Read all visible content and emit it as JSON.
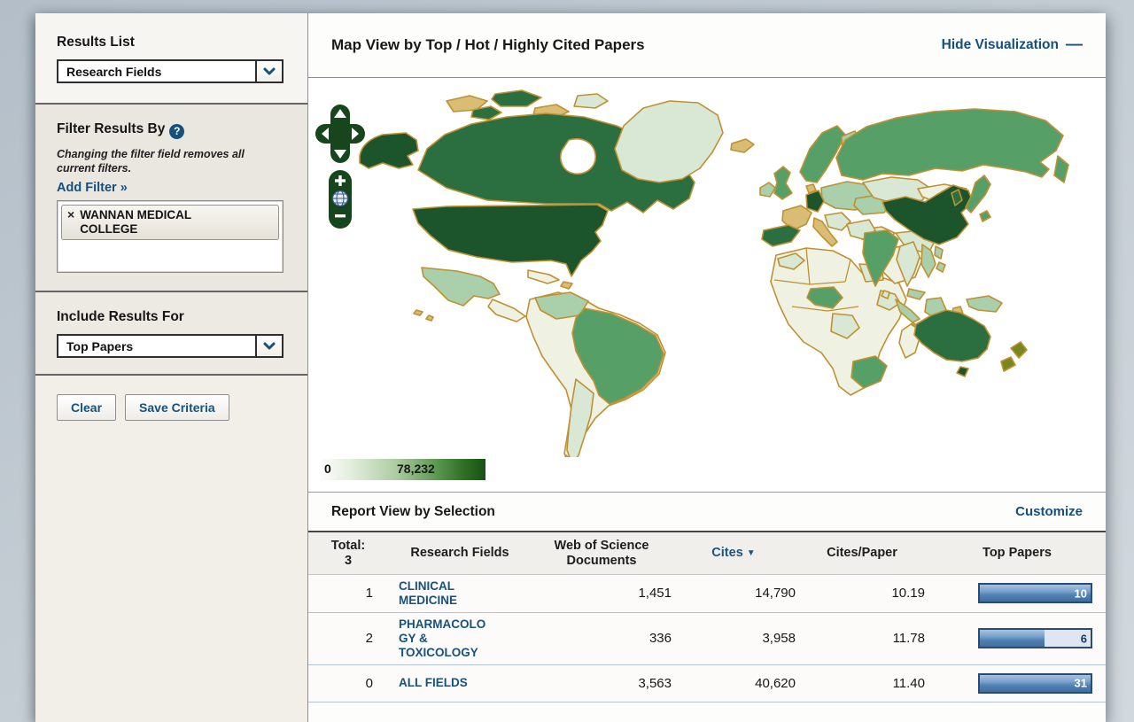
{
  "colors": {
    "accent_navy": "#15507d",
    "map_dark_green": "#1c552b",
    "map_mid_green": "#56a067",
    "map_border_tan": "#bf9132",
    "legend_max_green": "#175115",
    "bar_blue": "#4a79ad",
    "page_background": "#c3ccd3"
  },
  "sidebar": {
    "results_list": {
      "title": "Results List",
      "dropdown_value": "Research Fields",
      "dropdown_icon": "chevron-down"
    },
    "filter": {
      "title": "Filter Results By",
      "help_icon": "?",
      "note": "Changing the filter field removes all current filters.",
      "add_filter_label": "Add Filter »",
      "chips": [
        {
          "remove_icon": "×",
          "label": "WANNAN MEDICAL COLLEGE"
        }
      ]
    },
    "include": {
      "title": "Include Results For",
      "dropdown_value": "Top Papers",
      "dropdown_icon": "chevron-down"
    },
    "actions": {
      "clear_label": "Clear",
      "save_label": "Save Criteria"
    }
  },
  "map_section": {
    "title": "Map View by Top / Hot / Highly Cited Papers",
    "hide_label": "Hide Visualization",
    "hide_icon": "—",
    "legend": {
      "min": "0",
      "max": "78,232"
    },
    "controls": {
      "pan_icon": "pan-arrows",
      "zoom_in_icon": "plus",
      "zoom_out_icon": "minus",
      "globe_icon": "globe"
    }
  },
  "report": {
    "title": "Report View by Selection",
    "customize_label": "Customize",
    "table": {
      "total_label": "Total:",
      "total_count": "3",
      "columns": {
        "field": "Research Fields",
        "documents": "Web of Science Documents",
        "cites": "Cites",
        "cites_sort_icon": "▼",
        "cites_per_paper": "Cites/Paper",
        "top_papers": "Top Papers"
      },
      "rows": [
        {
          "rank": "1",
          "field": "CLINICAL MEDICINE",
          "documents": "1,451",
          "cites": "14,790",
          "cites_per_paper": "10.19",
          "top_papers": "10",
          "bar_fill_pct": 100
        },
        {
          "rank": "2",
          "field": "PHARMACOLOGY & TOXICOLOGY",
          "documents": "336",
          "cites": "3,958",
          "cites_per_paper": "11.78",
          "top_papers": "6",
          "bar_fill_pct": 58
        },
        {
          "rank": "0",
          "field": "ALL FIELDS",
          "documents": "3,563",
          "cites": "40,620",
          "cites_per_paper": "11.40",
          "top_papers": "31",
          "bar_fill_pct": 100
        }
      ]
    }
  }
}
